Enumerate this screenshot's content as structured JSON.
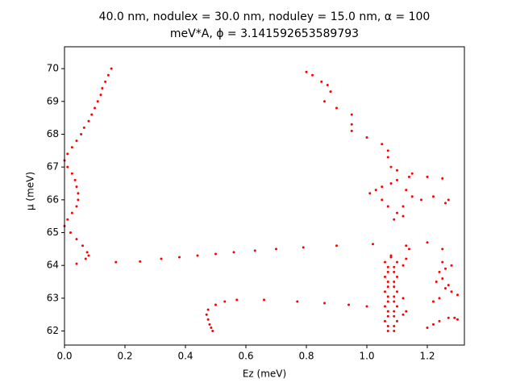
{
  "chart_data": {
    "type": "scatter",
    "title_lines": [
      "40.0 nm, nodulex = 30.0 nm, noduley = 15.0 nm, α =  100",
      "meV*A, ϕ =  3.141592653589793"
    ],
    "xlabel": "Ez (meV)",
    "ylabel": "μ (meV)",
    "color": "#ff0000",
    "xlim": [
      0,
      1.3227
    ],
    "ylim": [
      61.571,
      70.667
    ],
    "xticks": [
      {
        "value": 0,
        "label": "0.0"
      },
      0.2,
      0.4,
      0.6,
      0.8,
      {
        "value": 1,
        "label": "1.0"
      },
      1.2
    ],
    "yticks": [
      62,
      63,
      64,
      65,
      66,
      67,
      68,
      69,
      70
    ],
    "x": [
      0.04,
      0.07,
      0.08,
      0.075,
      0.06,
      0.04,
      0.02,
      0.0,
      0.01,
      0.025,
      0.04,
      0.045,
      0.045,
      0.04,
      0.035,
      0.025,
      0.01,
      0.0,
      0.01,
      0.025,
      0.04,
      0.055,
      0.065,
      0.08,
      0.09,
      0.1,
      0.11,
      0.12,
      0.125,
      0.135,
      0.145,
      0.155,
      0.17,
      0.25,
      0.32,
      0.38,
      0.44,
      0.5,
      0.56,
      0.63,
      0.7,
      0.79,
      0.9,
      1.02,
      1.13,
      1.2,
      1.25,
      0.49,
      0.485,
      0.48,
      0.475,
      0.47,
      0.475,
      0.5,
      0.53,
      0.57,
      0.66,
      0.77,
      0.86,
      0.94,
      1.0,
      0.8,
      0.82,
      0.85,
      0.87,
      0.88,
      0.86,
      0.9,
      0.95,
      0.95,
      0.95,
      1.0,
      1.05,
      1.07,
      1.07,
      1.08,
      1.1,
      1.15,
      1.2,
      1.25,
      1.07,
      1.09,
      1.1,
      1.09,
      1.07,
      1.06,
      1.07,
      1.09,
      1.1,
      1.09,
      1.07,
      1.06,
      1.07,
      1.09,
      1.1,
      1.08,
      1.09,
      1.07,
      1.06,
      1.07,
      1.09,
      1.1,
      1.09,
      1.07,
      1.06,
      1.07,
      1.09,
      1.1,
      1.09,
      1.07,
      1.06,
      1.08,
      1.12,
      1.13,
      1.12,
      1.12,
      1.13,
      1.14,
      1.2,
      1.22,
      1.24,
      1.27,
      1.29,
      1.3,
      1.22,
      1.24,
      1.26,
      1.28,
      1.3,
      1.23,
      1.25,
      1.27,
      1.24,
      1.26,
      1.28,
      1.25,
      1.01,
      1.03,
      1.05,
      1.07,
      1.1,
      1.12,
      1.13,
      1.15,
      1.18,
      1.22,
      1.26,
      1.27,
      1.05,
      1.08,
      1.1,
      1.14,
      1.09,
      1.12
    ],
    "values": [
      64.05,
      64.2,
      64.3,
      64.4,
      64.6,
      64.8,
      65.0,
      65.2,
      65.4,
      65.6,
      65.8,
      66.0,
      66.2,
      66.4,
      66.6,
      66.8,
      67.0,
      67.2,
      67.4,
      67.6,
      67.8,
      68.0,
      68.2,
      68.4,
      68.6,
      68.8,
      69.0,
      69.2,
      69.4,
      69.6,
      69.8,
      70.0,
      64.1,
      64.12,
      64.2,
      64.25,
      64.3,
      64.35,
      64.4,
      64.45,
      64.5,
      64.55,
      64.6,
      64.65,
      64.6,
      64.7,
      64.5,
      62.0,
      62.1,
      62.2,
      62.35,
      62.5,
      62.65,
      62.8,
      62.9,
      62.95,
      62.95,
      62.9,
      62.85,
      62.8,
      62.75,
      69.9,
      69.8,
      69.6,
      69.5,
      69.3,
      69.0,
      68.8,
      68.6,
      68.3,
      68.1,
      67.9,
      67.7,
      67.5,
      67.3,
      67.0,
      66.9,
      66.8,
      66.7,
      66.65,
      62.0,
      62.15,
      62.3,
      62.45,
      62.6,
      62.75,
      62.9,
      63.05,
      63.2,
      63.35,
      63.5,
      63.65,
      63.8,
      63.95,
      64.1,
      64.25,
      62.0,
      62.15,
      62.3,
      62.45,
      62.6,
      62.75,
      62.9,
      63.05,
      63.2,
      63.35,
      63.5,
      63.65,
      63.8,
      63.95,
      64.1,
      64.3,
      62.5,
      62.6,
      63.0,
      64.0,
      64.2,
      64.5,
      62.1,
      62.2,
      62.3,
      62.4,
      62.4,
      62.35,
      62.9,
      63.0,
      63.3,
      63.2,
      63.1,
      63.5,
      63.6,
      63.4,
      63.8,
      63.9,
      64.0,
      64.1,
      66.2,
      66.3,
      66.0,
      65.8,
      65.6,
      65.8,
      66.3,
      66.1,
      66.0,
      66.1,
      65.9,
      66.0,
      66.4,
      66.5,
      66.6,
      66.7,
      65.4,
      65.5
    ]
  }
}
